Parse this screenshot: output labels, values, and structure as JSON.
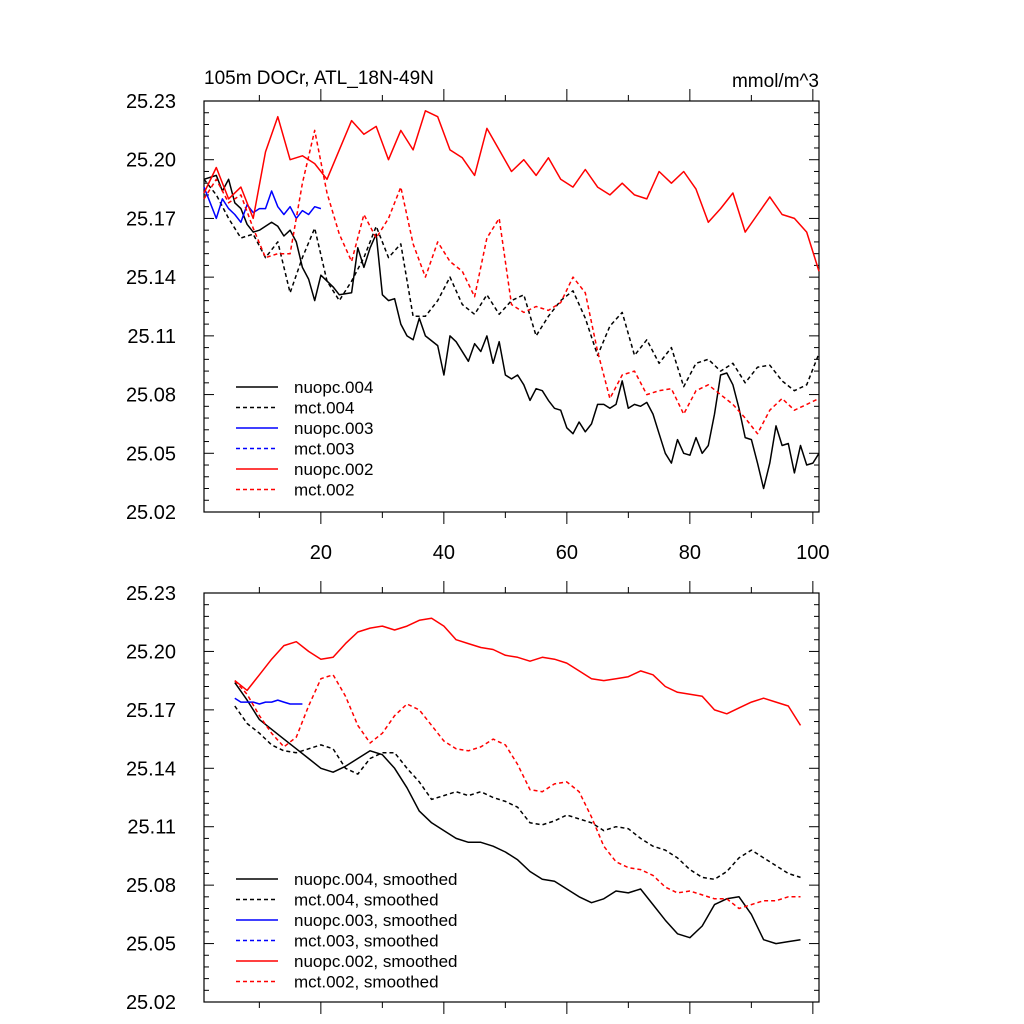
{
  "colors": {
    "black": "#000000",
    "blue": "#0000ff",
    "red": "#ff0000"
  },
  "chart_data": [
    {
      "type": "line",
      "title_left": "105m DOCr, ATL_18N-49N",
      "title_right": "mmol/m^3",
      "xlim": [
        1,
        101
      ],
      "ylim": [
        25.02,
        25.23
      ],
      "yticks": [
        "25.23",
        "25.20",
        "25.17",
        "25.14",
        "25.11",
        "25.08",
        "25.05",
        "25.02"
      ],
      "xticks": [
        "20",
        "40",
        "60",
        "80",
        "100"
      ],
      "legend_position": "bottom-left",
      "series": [
        {
          "name": "nuopc.004",
          "color": "#000000",
          "dash": "solid",
          "x": [
            1,
            3,
            4,
            5,
            6,
            7,
            8,
            9,
            10,
            12,
            13,
            14,
            15,
            16,
            17,
            18,
            19,
            20,
            21,
            22,
            23,
            25,
            26,
            27,
            28,
            29,
            30,
            31,
            32,
            33,
            34,
            35,
            36,
            37,
            39,
            40,
            41,
            42,
            44,
            45,
            46,
            47,
            48,
            49,
            50,
            51,
            52,
            53,
            54,
            55,
            56,
            57,
            58,
            59,
            60,
            61,
            62,
            63,
            64,
            65,
            66,
            67,
            68,
            69,
            70,
            71,
            72,
            73,
            74,
            75,
            76,
            77,
            78,
            79,
            80,
            81,
            82,
            83,
            84,
            85,
            86,
            87,
            88,
            89,
            90,
            91,
            92,
            93,
            94,
            95,
            96,
            97,
            98,
            99,
            100,
            101
          ],
          "y": [
            25.19,
            25.192,
            25.184,
            25.19,
            25.178,
            25.175,
            25.167,
            25.163,
            25.164,
            25.168,
            25.166,
            25.161,
            25.164,
            25.158,
            25.145,
            25.139,
            25.128,
            25.141,
            25.138,
            25.135,
            25.131,
            25.132,
            25.155,
            25.145,
            25.155,
            25.162,
            25.131,
            25.128,
            25.129,
            25.116,
            25.11,
            25.108,
            25.119,
            25.11,
            25.105,
            25.09,
            25.11,
            25.107,
            25.097,
            25.106,
            25.102,
            25.11,
            25.096,
            25.107,
            25.09,
            25.088,
            25.09,
            25.085,
            25.077,
            25.083,
            25.082,
            25.077,
            25.073,
            25.072,
            25.063,
            25.06,
            25.066,
            25.061,
            25.065,
            25.075,
            25.075,
            25.073,
            25.075,
            25.087,
            25.073,
            25.075,
            25.074,
            25.076,
            25.07,
            25.06,
            25.05,
            25.045,
            25.057,
            25.05,
            25.049,
            25.058,
            25.05,
            25.054,
            25.07,
            25.09,
            25.091,
            25.085,
            25.073,
            25.058,
            25.057,
            25.045,
            25.032,
            25.045,
            25.064,
            25.054,
            25.055,
            25.04,
            25.054,
            25.044,
            25.045,
            25.05
          ]
        },
        {
          "name": "mct.004",
          "color": "#000000",
          "dash": "dashed",
          "x": [
            1,
            3,
            5,
            7,
            9,
            11,
            13,
            15,
            17,
            19,
            21,
            23,
            25,
            27,
            29,
            31,
            33,
            35,
            37,
            39,
            41,
            43,
            45,
            47,
            49,
            51,
            53,
            55,
            57,
            59,
            61,
            63,
            65,
            67,
            69,
            71,
            73,
            75,
            77,
            79,
            81,
            83,
            85,
            87,
            89,
            91,
            93,
            95,
            97,
            99,
            101
          ],
          "y": [
            25.19,
            25.182,
            25.17,
            25.16,
            25.162,
            25.15,
            25.158,
            25.132,
            25.15,
            25.165,
            25.138,
            25.128,
            25.138,
            25.15,
            25.166,
            25.15,
            25.157,
            25.12,
            25.12,
            25.128,
            25.14,
            25.126,
            25.121,
            25.131,
            25.121,
            25.128,
            25.131,
            25.11,
            25.12,
            25.128,
            25.133,
            25.119,
            25.1,
            25.115,
            25.122,
            25.1,
            25.108,
            25.096,
            25.104,
            25.084,
            25.096,
            25.098,
            25.092,
            25.096,
            25.086,
            25.094,
            25.095,
            25.087,
            25.082,
            25.085,
            25.101
          ]
        },
        {
          "name": "nuopc.003",
          "color": "#0000ff",
          "dash": "solid",
          "x": [
            1,
            2,
            3,
            4,
            5,
            6,
            7,
            8,
            9,
            10,
            11,
            12,
            13,
            14,
            15,
            16,
            17,
            18,
            19,
            20
          ],
          "y": [
            25.186,
            25.178,
            25.17,
            25.18,
            25.175,
            25.172,
            25.168,
            25.177,
            25.173,
            25.175,
            25.175,
            25.184,
            25.176,
            25.172,
            25.176,
            25.17,
            25.174,
            25.172,
            25.176,
            25.175
          ]
        },
        {
          "name": "mct.003",
          "color": "#0000ff",
          "dash": "dashed",
          "x": [],
          "y": []
        },
        {
          "name": "nuopc.002",
          "color": "#ff0000",
          "dash": "solid",
          "x": [
            1,
            3,
            5,
            7,
            9,
            11,
            13,
            15,
            17,
            19,
            21,
            23,
            25,
            27,
            29,
            31,
            33,
            35,
            37,
            39,
            41,
            43,
            45,
            47,
            49,
            51,
            53,
            55,
            57,
            59,
            61,
            63,
            65,
            67,
            69,
            71,
            73,
            75,
            77,
            79,
            81,
            83,
            85,
            87,
            89,
            91,
            93,
            95,
            97,
            99,
            101
          ],
          "y": [
            25.183,
            25.196,
            25.18,
            25.186,
            25.17,
            25.204,
            25.222,
            25.2,
            25.202,
            25.198,
            25.19,
            25.205,
            25.22,
            25.213,
            25.217,
            25.2,
            25.215,
            25.205,
            25.225,
            25.222,
            25.205,
            25.201,
            25.192,
            25.216,
            25.205,
            25.194,
            25.2,
            25.192,
            25.201,
            25.19,
            25.186,
            25.195,
            25.186,
            25.182,
            25.188,
            25.182,
            25.18,
            25.194,
            25.188,
            25.194,
            25.185,
            25.168,
            25.175,
            25.183,
            25.163,
            25.172,
            25.181,
            25.172,
            25.17,
            25.163,
            25.143
          ]
        },
        {
          "name": "mct.002",
          "color": "#ff0000",
          "dash": "dashed",
          "x": [
            1,
            3,
            5,
            7,
            9,
            11,
            13,
            15,
            17,
            19,
            21,
            23,
            25,
            27,
            29,
            31,
            33,
            35,
            37,
            39,
            41,
            43,
            45,
            47,
            49,
            51,
            53,
            55,
            57,
            59,
            61,
            63,
            65,
            67,
            69,
            71,
            73,
            75,
            77,
            79,
            81,
            83,
            85,
            87,
            89,
            91,
            93,
            95,
            97,
            99,
            101
          ],
          "y": [
            25.18,
            25.19,
            25.178,
            25.182,
            25.165,
            25.15,
            25.152,
            25.152,
            25.188,
            25.215,
            25.183,
            25.162,
            25.148,
            25.172,
            25.16,
            25.17,
            25.186,
            25.157,
            25.14,
            25.158,
            25.148,
            25.143,
            25.13,
            25.16,
            25.17,
            25.126,
            25.122,
            25.125,
            25.123,
            25.127,
            25.14,
            25.132,
            25.102,
            25.078,
            25.09,
            25.092,
            25.08,
            25.082,
            25.083,
            25.07,
            25.082,
            25.085,
            25.08,
            25.075,
            25.068,
            25.06,
            25.072,
            25.078,
            25.072,
            25.075,
            25.078
          ]
        }
      ]
    },
    {
      "type": "line",
      "xlim": [
        1,
        101
      ],
      "ylim": [
        25.02,
        25.23
      ],
      "yticks": [
        "25.23",
        "25.20",
        "25.17",
        "25.14",
        "25.11",
        "25.08",
        "25.05",
        "25.02"
      ],
      "legend_position": "bottom-left",
      "series": [
        {
          "name": "nuopc.004, smoothed",
          "color": "#000000",
          "dash": "solid",
          "x": [
            6,
            8,
            10,
            12,
            14,
            16,
            18,
            20,
            22,
            24,
            26,
            28,
            30,
            32,
            34,
            36,
            38,
            40,
            42,
            44,
            46,
            48,
            50,
            52,
            54,
            56,
            58,
            60,
            62,
            64,
            66,
            68,
            70,
            72,
            74,
            76,
            78,
            80,
            82,
            84,
            86,
            88,
            90,
            92,
            94,
            96,
            98
          ],
          "y": [
            25.184,
            25.175,
            25.165,
            25.16,
            25.155,
            25.15,
            25.145,
            25.14,
            25.138,
            25.141,
            25.145,
            25.149,
            25.147,
            25.14,
            25.13,
            25.118,
            25.112,
            25.108,
            25.104,
            25.102,
            25.102,
            25.1,
            25.097,
            25.093,
            25.087,
            25.083,
            25.082,
            25.078,
            25.074,
            25.071,
            25.073,
            25.077,
            25.076,
            25.078,
            25.07,
            25.062,
            25.055,
            25.053,
            25.059,
            25.07,
            25.073,
            25.074,
            25.065,
            25.052,
            25.05,
            25.051,
            25.052
          ]
        },
        {
          "name": "mct.004, smoothed",
          "color": "#000000",
          "dash": "dashed",
          "x": [
            6,
            8,
            10,
            12,
            14,
            16,
            18,
            20,
            22,
            24,
            26,
            28,
            30,
            32,
            34,
            36,
            38,
            40,
            42,
            44,
            46,
            48,
            50,
            52,
            54,
            56,
            58,
            60,
            62,
            64,
            66,
            68,
            70,
            72,
            74,
            76,
            78,
            80,
            82,
            84,
            86,
            88,
            90,
            92,
            94,
            96,
            98
          ],
          "y": [
            25.172,
            25.163,
            25.158,
            25.152,
            25.149,
            25.148,
            25.15,
            25.152,
            25.15,
            25.14,
            25.137,
            25.145,
            25.148,
            25.148,
            25.14,
            25.133,
            25.124,
            25.126,
            25.128,
            25.126,
            25.128,
            25.125,
            25.123,
            25.12,
            25.112,
            25.111,
            25.113,
            25.116,
            25.114,
            25.112,
            25.108,
            25.11,
            25.109,
            25.104,
            25.1,
            25.098,
            25.094,
            25.088,
            25.084,
            25.083,
            25.087,
            25.094,
            25.098,
            25.094,
            25.09,
            25.086,
            25.084
          ]
        },
        {
          "name": "nuopc.003, smoothed",
          "color": "#0000ff",
          "dash": "solid",
          "x": [
            6,
            7,
            8,
            9,
            10,
            11,
            12,
            13,
            14,
            15,
            16,
            17
          ],
          "y": [
            25.176,
            25.174,
            25.174,
            25.174,
            25.173,
            25.174,
            25.174,
            25.175,
            25.174,
            25.173,
            25.173,
            25.173
          ]
        },
        {
          "name": "mct.003, smoothed",
          "color": "#0000ff",
          "dash": "dashed",
          "x": [],
          "y": []
        },
        {
          "name": "nuopc.002, smoothed",
          "color": "#ff0000",
          "dash": "solid",
          "x": [
            6,
            8,
            10,
            12,
            14,
            16,
            18,
            20,
            22,
            24,
            26,
            28,
            30,
            32,
            34,
            36,
            38,
            40,
            42,
            44,
            46,
            48,
            50,
            52,
            54,
            56,
            58,
            60,
            62,
            64,
            66,
            68,
            70,
            72,
            74,
            76,
            78,
            80,
            82,
            84,
            86,
            88,
            90,
            92,
            94,
            96,
            98
          ],
          "y": [
            25.185,
            25.18,
            25.188,
            25.196,
            25.203,
            25.205,
            25.2,
            25.196,
            25.197,
            25.204,
            25.21,
            25.212,
            25.213,
            25.211,
            25.213,
            25.216,
            25.217,
            25.213,
            25.206,
            25.204,
            25.202,
            25.201,
            25.198,
            25.197,
            25.195,
            25.197,
            25.196,
            25.194,
            25.19,
            25.186,
            25.185,
            25.186,
            25.187,
            25.19,
            25.188,
            25.182,
            25.179,
            25.178,
            25.177,
            25.17,
            25.168,
            25.171,
            25.174,
            25.176,
            25.174,
            25.172,
            25.162
          ]
        },
        {
          "name": "mct.002, smoothed",
          "color": "#ff0000",
          "dash": "dashed",
          "x": [
            6,
            8,
            10,
            12,
            14,
            16,
            18,
            20,
            22,
            24,
            26,
            28,
            30,
            32,
            34,
            36,
            38,
            40,
            42,
            44,
            46,
            48,
            50,
            52,
            54,
            56,
            58,
            60,
            62,
            64,
            66,
            68,
            70,
            72,
            74,
            76,
            78,
            80,
            82,
            84,
            86,
            88,
            90,
            92,
            94,
            96,
            98
          ],
          "y": [
            25.185,
            25.178,
            25.167,
            25.158,
            25.151,
            25.156,
            25.172,
            25.186,
            25.188,
            25.177,
            25.162,
            25.153,
            25.158,
            25.167,
            25.173,
            25.17,
            25.162,
            25.154,
            25.15,
            25.149,
            25.151,
            25.155,
            25.152,
            25.142,
            25.129,
            25.128,
            25.132,
            25.133,
            25.128,
            25.115,
            25.1,
            25.092,
            25.089,
            25.088,
            25.085,
            25.079,
            25.076,
            25.077,
            25.075,
            25.073,
            25.073,
            25.068,
            25.07,
            25.072,
            25.072,
            25.074,
            25.074
          ]
        }
      ]
    }
  ]
}
